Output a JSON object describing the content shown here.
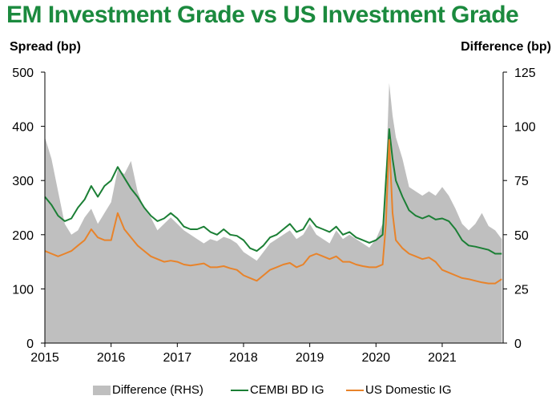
{
  "chart_data": {
    "type": "line",
    "title": "EM Investment Grade vs US Investment Grade",
    "ylabel_left": "Spread (bp)",
    "ylabel_right": "Difference (bp)",
    "ylim_left": [
      0,
      500
    ],
    "ylim_right": [
      0,
      125
    ],
    "yticks_left": [
      "0",
      "100",
      "200",
      "300",
      "400",
      "500"
    ],
    "yticks_right": [
      "0",
      "25",
      "50",
      "75",
      "100",
      "125"
    ],
    "xlim": [
      2015,
      2021.92
    ],
    "xticks": [
      "2015",
      "2016",
      "2017",
      "2018",
      "2019",
      "2020",
      "2021"
    ],
    "x": [
      2015.0,
      2015.1,
      2015.2,
      2015.3,
      2015.4,
      2015.5,
      2015.6,
      2015.7,
      2015.8,
      2015.9,
      2016.0,
      2016.1,
      2016.2,
      2016.3,
      2016.4,
      2016.5,
      2016.6,
      2016.7,
      2016.8,
      2016.9,
      2017.0,
      2017.1,
      2017.2,
      2017.3,
      2017.4,
      2017.5,
      2017.6,
      2017.7,
      2017.8,
      2017.9,
      2018.0,
      2018.1,
      2018.2,
      2018.3,
      2018.4,
      2018.5,
      2018.6,
      2018.7,
      2018.8,
      2018.9,
      2019.0,
      2019.1,
      2019.2,
      2019.3,
      2019.4,
      2019.5,
      2019.6,
      2019.7,
      2019.8,
      2019.9,
      2020.0,
      2020.1,
      2020.15,
      2020.2,
      2020.25,
      2020.3,
      2020.4,
      2020.5,
      2020.6,
      2020.7,
      2020.8,
      2020.9,
      2021.0,
      2021.1,
      2021.2,
      2021.3,
      2021.4,
      2021.5,
      2021.6,
      2021.7,
      2021.8,
      2021.9
    ],
    "series": [
      {
        "name": "Difference (RHS)",
        "axis": "right",
        "type": "area",
        "color": "#bfbfbf",
        "values": [
          95,
          85,
          70,
          55,
          50,
          52,
          58,
          62,
          55,
          60,
          65,
          80,
          78,
          84,
          70,
          62,
          58,
          52,
          55,
          58,
          55,
          52,
          50,
          48,
          46,
          48,
          47,
          49,
          48,
          46,
          42,
          40,
          38,
          42,
          46,
          48,
          50,
          52,
          48,
          50,
          55,
          50,
          48,
          46,
          52,
          48,
          50,
          48,
          46,
          44,
          48,
          55,
          78,
          120,
          105,
          95,
          85,
          72,
          70,
          68,
          70,
          68,
          72,
          68,
          62,
          55,
          52,
          55,
          60,
          54,
          52,
          48
        ]
      },
      {
        "name": "CEMBI BD IG",
        "axis": "left",
        "type": "line",
        "color": "#1b7f35",
        "values": [
          270,
          255,
          235,
          225,
          230,
          250,
          265,
          290,
          270,
          290,
          300,
          325,
          305,
          285,
          270,
          250,
          235,
          225,
          230,
          240,
          230,
          215,
          210,
          210,
          215,
          205,
          200,
          210,
          200,
          198,
          190,
          175,
          170,
          180,
          195,
          200,
          210,
          220,
          205,
          210,
          230,
          215,
          210,
          205,
          215,
          200,
          205,
          195,
          190,
          185,
          190,
          200,
          300,
          395,
          340,
          300,
          270,
          245,
          235,
          230,
          235,
          228,
          230,
          225,
          210,
          190,
          180,
          178,
          175,
          172,
          165,
          165
        ]
      },
      {
        "name": "US Domestic IG",
        "axis": "left",
        "type": "line",
        "color": "#e8832a",
        "values": [
          170,
          165,
          160,
          165,
          170,
          180,
          190,
          210,
          195,
          190,
          190,
          240,
          210,
          195,
          180,
          170,
          160,
          155,
          150,
          152,
          150,
          145,
          143,
          145,
          147,
          140,
          140,
          142,
          138,
          135,
          125,
          120,
          115,
          125,
          135,
          140,
          145,
          148,
          140,
          145,
          160,
          165,
          160,
          155,
          160,
          150,
          150,
          145,
          142,
          140,
          140,
          145,
          220,
          375,
          240,
          190,
          175,
          165,
          160,
          155,
          158,
          150,
          135,
          130,
          125,
          120,
          118,
          115,
          112,
          110,
          110,
          118
        ]
      }
    ]
  },
  "legend": {
    "difference_label": "Difference (RHS)",
    "cembi_label": "CEMBI BD IG",
    "us_label": "US Domestic IG"
  }
}
